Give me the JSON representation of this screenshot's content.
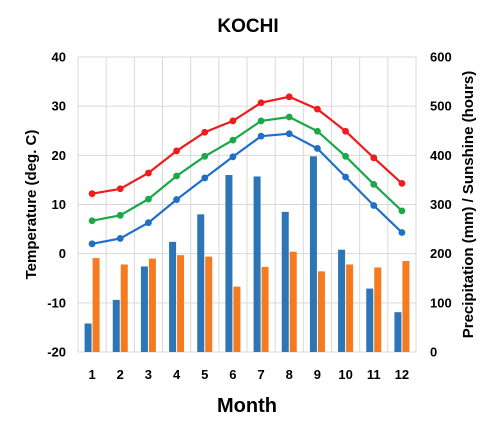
{
  "chart_data": {
    "type": "bar",
    "title": "KOCHI",
    "xlabel": "Month",
    "ylabel_left": "Temperature (deg. C)",
    "ylabel_right": "Precipitation (mm) / Sunshine (hours)",
    "categories": [
      "1",
      "2",
      "3",
      "4",
      "5",
      "6",
      "7",
      "8",
      "9",
      "10",
      "11",
      "12"
    ],
    "ylim_left": [
      -20,
      40
    ],
    "yticks_left": [
      "-20",
      "-10",
      "0",
      "10",
      "20",
      "30",
      "40"
    ],
    "ylim_right": [
      0,
      600
    ],
    "yticks_right": [
      "0",
      "100",
      "200",
      "300",
      "400",
      "500",
      "600"
    ],
    "grid": true,
    "line_series": [
      {
        "color": "#ee1c1c",
        "axis": "left",
        "values": [
          12.2,
          13.2,
          16.4,
          20.9,
          24.7,
          27.0,
          30.7,
          31.9,
          29.4,
          24.9,
          19.5,
          14.3
        ]
      },
      {
        "color": "#1aa84a",
        "axis": "left",
        "values": [
          6.7,
          7.8,
          11.1,
          15.8,
          19.8,
          23.1,
          27.0,
          27.8,
          24.9,
          19.8,
          14.1,
          8.7
        ]
      },
      {
        "color": "#1f6fc5",
        "axis": "left",
        "values": [
          2.0,
          3.1,
          6.3,
          11.0,
          15.4,
          19.7,
          23.9,
          24.4,
          21.4,
          15.6,
          9.8,
          4.3
        ]
      }
    ],
    "bar_series": [
      {
        "color": "#2e75b6",
        "axis": "right",
        "values": [
          58,
          106,
          174,
          224,
          280,
          360,
          357,
          285,
          398,
          208,
          129,
          81
        ]
      },
      {
        "color": "#f47b20",
        "axis": "right",
        "values": [
          191,
          178,
          190,
          197,
          194,
          133,
          173,
          204,
          164,
          178,
          172,
          185
        ]
      }
    ]
  }
}
